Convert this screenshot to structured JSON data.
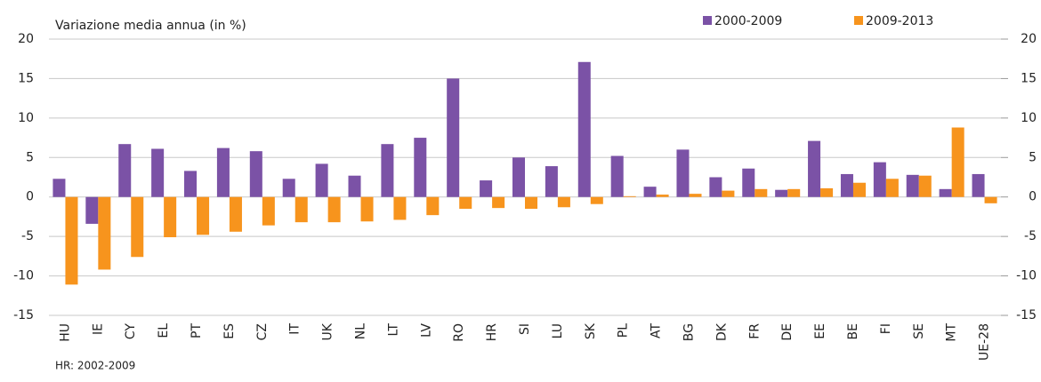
{
  "chart_data": {
    "type": "bar",
    "axis_title": "Variazione media annua (in %)",
    "footnote": "HR: 2002-2009",
    "categories": [
      "HU",
      "IE",
      "CY",
      "EL",
      "PT",
      "ES",
      "CZ",
      "IT",
      "UK",
      "NL",
      "LT",
      "LV",
      "RO",
      "HR",
      "SI",
      "LU",
      "SK",
      "PL",
      "AT",
      "BG",
      "DK",
      "FR",
      "DE",
      "EE",
      "BE",
      "FI",
      "SE",
      "MT",
      "UE-28"
    ],
    "series": [
      {
        "name": "2000-2009",
        "color": "#7b52a6",
        "values": [
          2.3,
          -3.4,
          6.7,
          6.1,
          3.3,
          6.2,
          5.8,
          2.3,
          4.2,
          2.7,
          6.7,
          7.5,
          15.0,
          2.1,
          5.0,
          3.9,
          17.1,
          5.2,
          1.3,
          6.0,
          2.5,
          3.6,
          0.9,
          7.1,
          2.9,
          4.4,
          2.8,
          1.0,
          2.9
        ]
      },
      {
        "name": "2009-2013",
        "color": "#f7941d",
        "values": [
          -11.1,
          -9.2,
          -7.6,
          -5.1,
          -4.8,
          -4.4,
          -3.6,
          -3.2,
          -3.2,
          -3.1,
          -2.9,
          -2.3,
          -1.5,
          -1.4,
          -1.5,
          -1.3,
          -0.9,
          0.1,
          0.3,
          0.4,
          0.8,
          1.0,
          1.0,
          1.1,
          1.8,
          2.3,
          2.7,
          8.8,
          -0.8
        ]
      }
    ],
    "ylim": [
      -15,
      20
    ],
    "yticks": [
      -15,
      -10,
      -5,
      0,
      5,
      10,
      15,
      20
    ],
    "y2lim": [
      -15,
      20
    ],
    "y2ticks": [
      -15,
      -10,
      -5,
      0,
      5,
      10,
      15,
      20
    ],
    "grid": true
  }
}
